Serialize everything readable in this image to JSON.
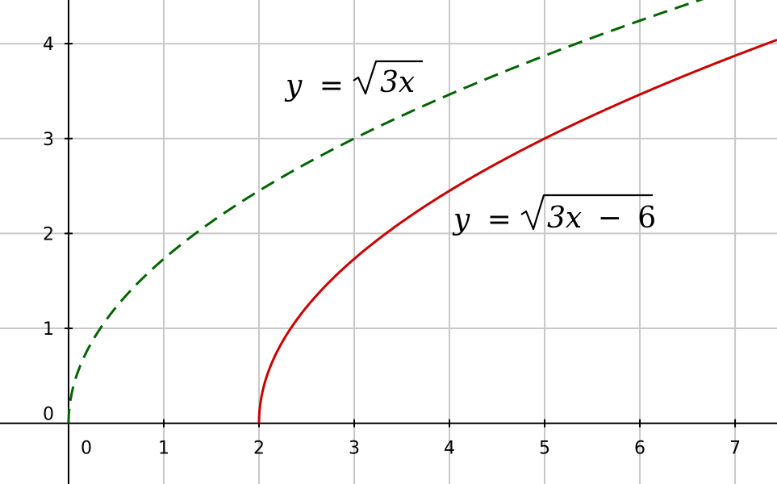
{
  "chart_data": {
    "type": "line",
    "title": "",
    "xlabel": "",
    "ylabel": "",
    "xlim": [
      -0.72,
      7.44
    ],
    "ylim": [
      -0.64,
      4.46
    ],
    "grid": true,
    "x_ticks": [
      0,
      1,
      2,
      3,
      4,
      5,
      6,
      7
    ],
    "y_ticks": [
      0,
      1,
      2,
      3,
      4
    ],
    "x_tick_labels": [
      "0",
      "1",
      "2",
      "3",
      "4",
      "5",
      "6",
      "7"
    ],
    "y_tick_labels": [
      "0",
      "1",
      "2",
      "3",
      "4"
    ],
    "series": [
      {
        "name": "y = √3x",
        "style": "dashed",
        "color": "#006400",
        "formula": "sqrt(3x)",
        "x": [
          0,
          0.25,
          0.5,
          1,
          1.5,
          2,
          2.5,
          3,
          3.5,
          4,
          4.5,
          5,
          5.5,
          6,
          6.5,
          7
        ],
        "y": [
          0,
          0.87,
          1.22,
          1.73,
          2.12,
          2.45,
          2.74,
          3,
          3.24,
          3.46,
          3.67,
          3.87,
          4.06,
          4.24,
          4.42,
          4.58
        ]
      },
      {
        "name": "y = √(3x − 6)",
        "style": "solid",
        "color": "#cc0000",
        "formula": "sqrt(3x-6)",
        "x": [
          2,
          2.25,
          2.5,
          3,
          3.5,
          4,
          4.5,
          5,
          5.5,
          6,
          6.5,
          7
        ],
        "y": [
          0,
          0.87,
          1.22,
          1.73,
          2.12,
          2.45,
          2.74,
          3,
          3.24,
          3.46,
          3.67,
          3.87
        ]
      }
    ],
    "annotations": {
      "eq1": {
        "lhs": "y",
        "eq": "=",
        "radicand": "3x"
      },
      "eq2": {
        "lhs": "y",
        "eq": "=",
        "radicand_var": "3x",
        "radicand_op": "−",
        "radicand_const": "6"
      }
    }
  },
  "colors": {
    "grid": "#c8c8c8",
    "axis": "#000000",
    "background": "#ffffff"
  }
}
